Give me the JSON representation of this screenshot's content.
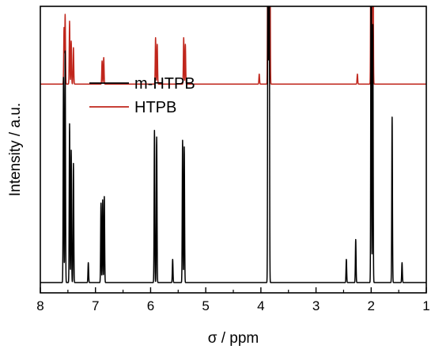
{
  "chart_data": {
    "type": "line",
    "xlabel": "σ / ppm",
    "ylabel": "Intensity / a.u.",
    "xlim": [
      8,
      1
    ],
    "x_reversed": true,
    "y_ticks_shown": false,
    "grid": false,
    "legend_position": "upper-left",
    "xticks": [
      {
        "value": 8,
        "label": "8"
      },
      {
        "value": 7,
        "label": "7"
      },
      {
        "value": 6,
        "label": "6"
      },
      {
        "value": 5,
        "label": "5"
      },
      {
        "value": 4,
        "label": "4"
      },
      {
        "value": 3,
        "label": "3"
      },
      {
        "value": 2,
        "label": "2"
      },
      {
        "value": 1,
        "label": "1"
      }
    ],
    "series": [
      {
        "name": "m-HTPB",
        "color": "#000000",
        "baseline": 0.0,
        "peaks": [
          {
            "x": 7.58,
            "y": 0.62
          },
          {
            "x": 7.55,
            "y": 0.7
          },
          {
            "x": 7.47,
            "y": 0.48
          },
          {
            "x": 7.44,
            "y": 0.4
          },
          {
            "x": 7.4,
            "y": 0.36
          },
          {
            "x": 7.13,
            "y": 0.06
          },
          {
            "x": 6.9,
            "y": 0.24
          },
          {
            "x": 6.87,
            "y": 0.25
          },
          {
            "x": 6.84,
            "y": 0.26
          },
          {
            "x": 5.93,
            "y": 0.46
          },
          {
            "x": 5.89,
            "y": 0.44
          },
          {
            "x": 5.6,
            "y": 0.07
          },
          {
            "x": 5.42,
            "y": 0.43
          },
          {
            "x": 5.39,
            "y": 0.41
          },
          {
            "x": 3.87,
            "y": 1.48
          },
          {
            "x": 3.85,
            "y": 1.22
          },
          {
            "x": 2.45,
            "y": 0.07
          },
          {
            "x": 2.28,
            "y": 0.13
          },
          {
            "x": 2.0,
            "y": 1.24
          },
          {
            "x": 1.97,
            "y": 0.78
          },
          {
            "x": 1.62,
            "y": 0.5
          },
          {
            "x": 1.44,
            "y": 0.06
          }
        ]
      },
      {
        "name": "HTPB",
        "color": "#c0261c",
        "baseline": 0.6,
        "peaks": [
          {
            "x": 7.57,
            "y": 0.17
          },
          {
            "x": 7.55,
            "y": 0.21
          },
          {
            "x": 7.47,
            "y": 0.19
          },
          {
            "x": 7.44,
            "y": 0.13
          },
          {
            "x": 7.4,
            "y": 0.11
          },
          {
            "x": 6.88,
            "y": 0.07
          },
          {
            "x": 6.85,
            "y": 0.08
          },
          {
            "x": 5.91,
            "y": 0.14
          },
          {
            "x": 5.88,
            "y": 0.12
          },
          {
            "x": 5.4,
            "y": 0.14
          },
          {
            "x": 5.37,
            "y": 0.12
          },
          {
            "x": 4.03,
            "y": 0.03
          },
          {
            "x": 3.87,
            "y": 1.4
          },
          {
            "x": 3.84,
            "y": 1.3
          },
          {
            "x": 2.25,
            "y": 0.03
          },
          {
            "x": 2.0,
            "y": 1.4
          },
          {
            "x": 1.97,
            "y": 1.2
          }
        ]
      }
    ]
  }
}
